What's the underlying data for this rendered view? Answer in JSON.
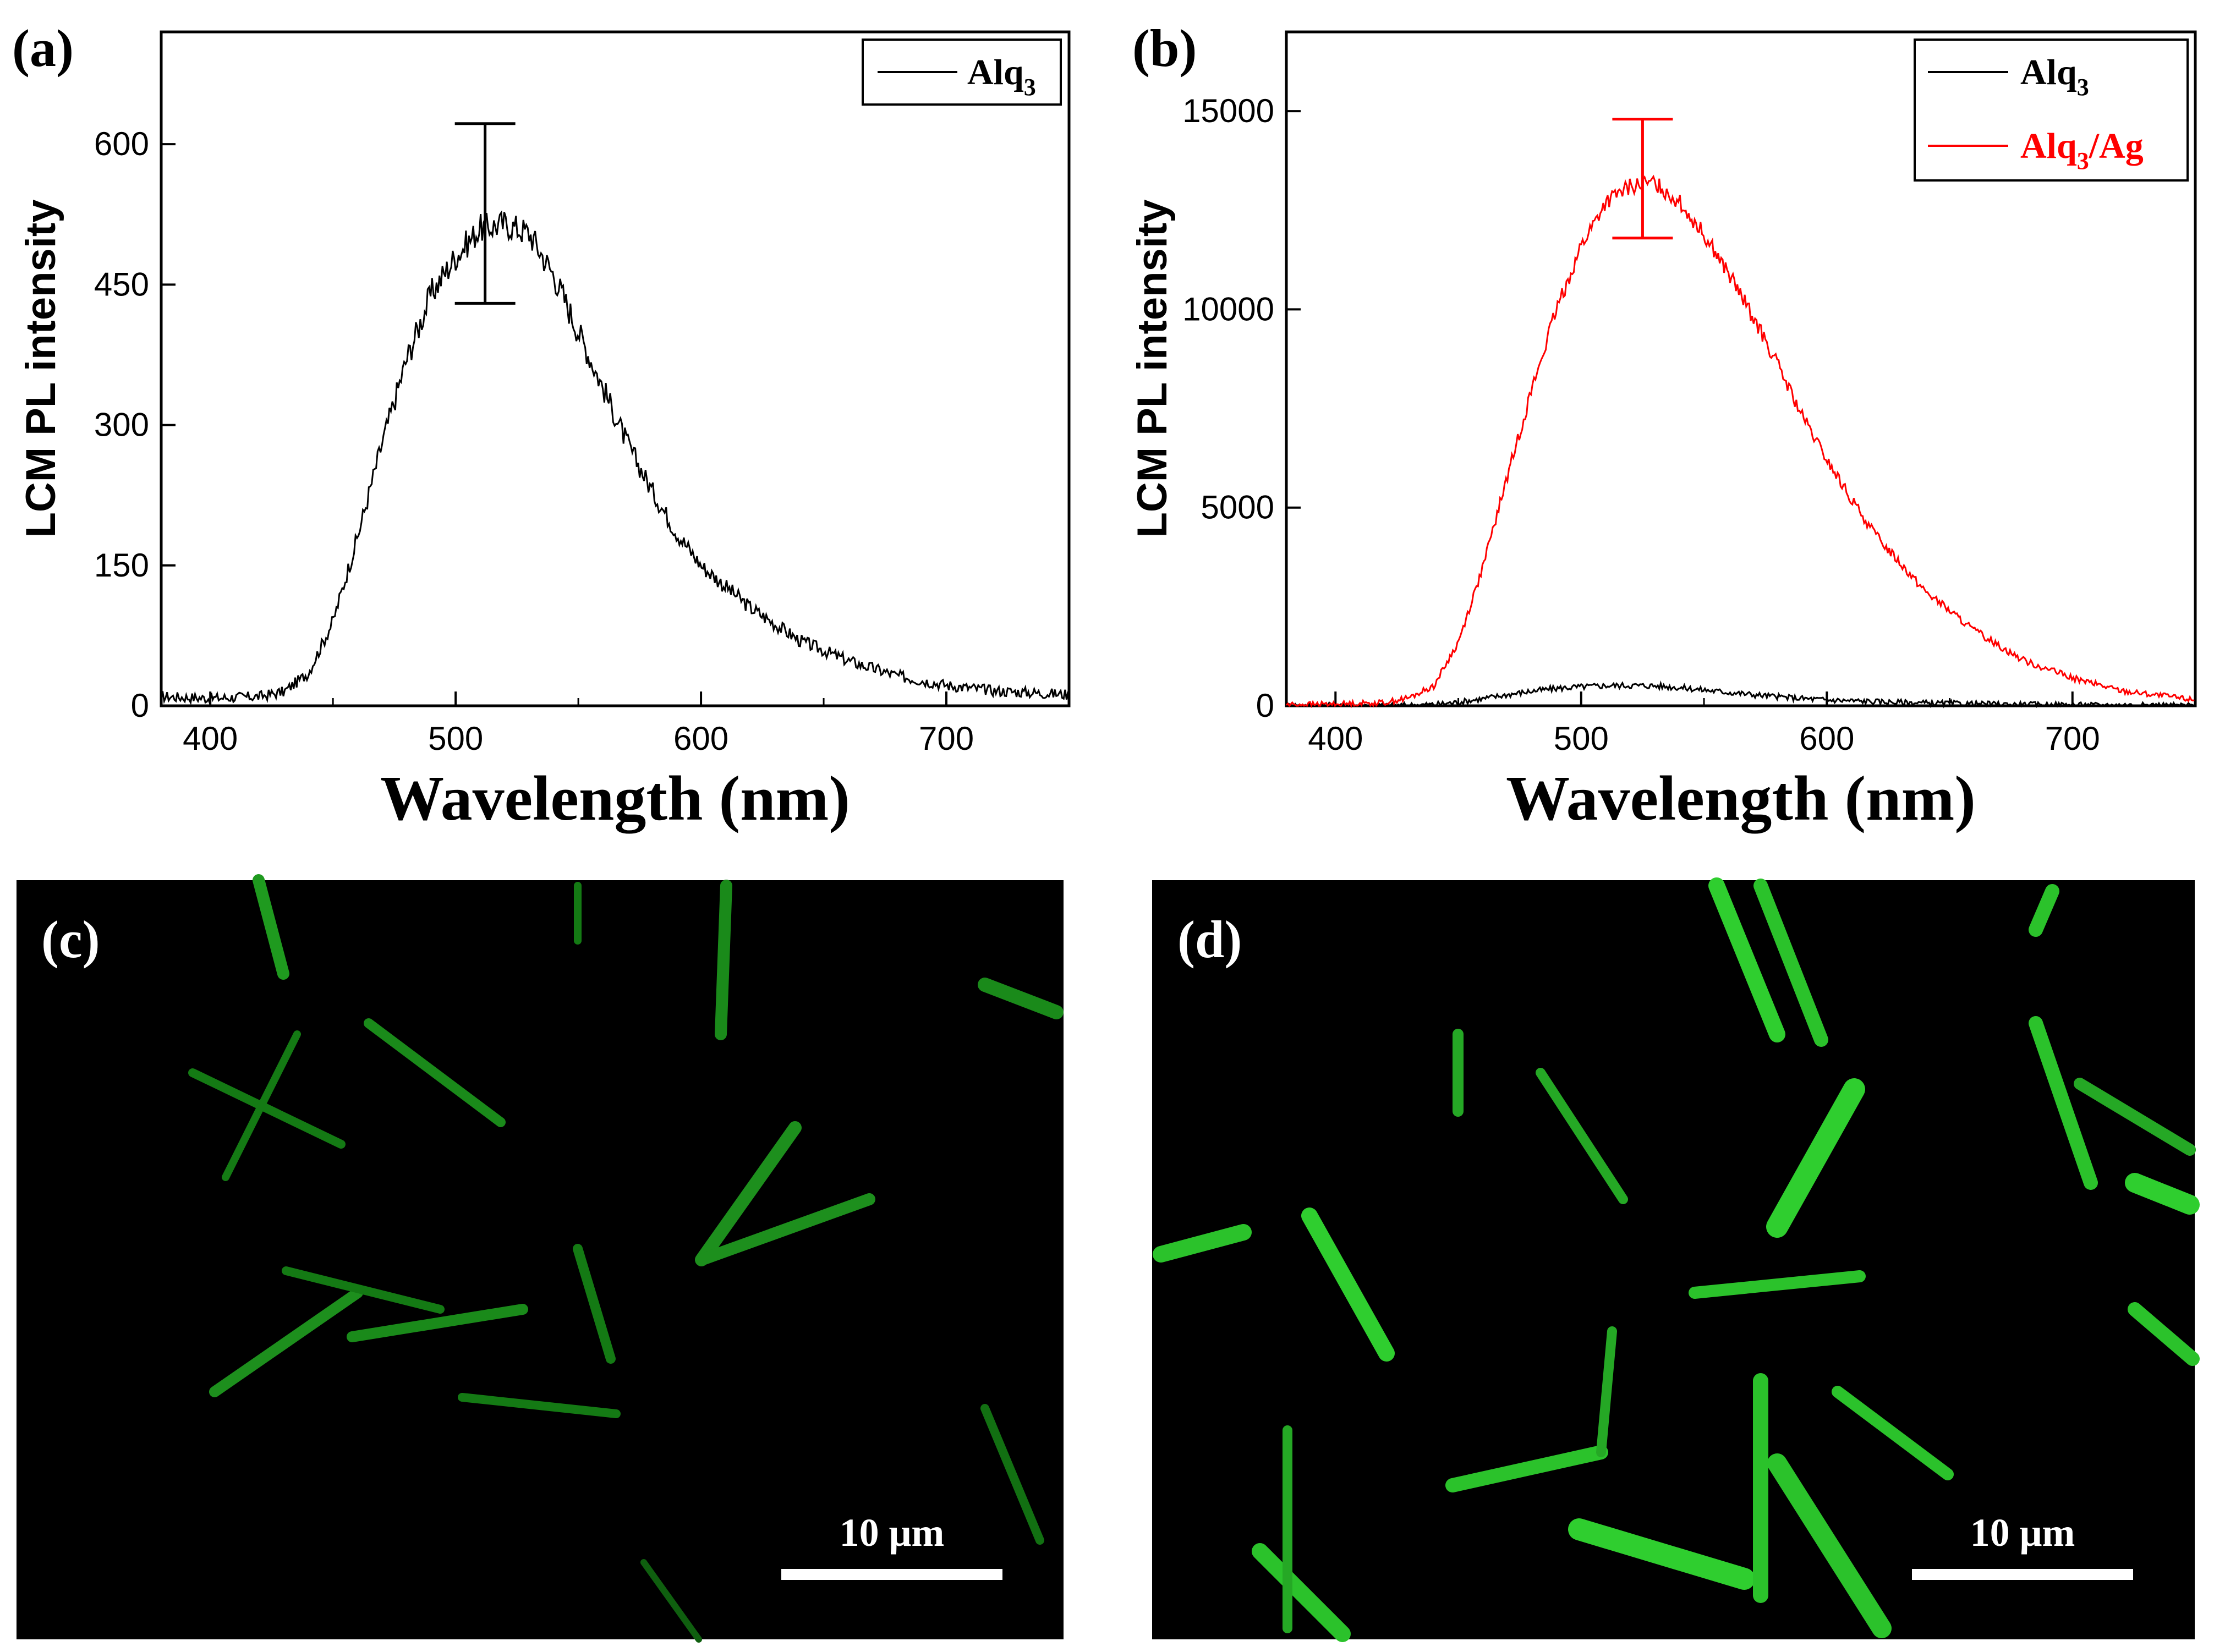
{
  "figure": {
    "panels": {
      "a": {
        "label": "(a)"
      },
      "b": {
        "label": "(b)"
      },
      "c": {
        "label": "(c)",
        "scale_bar": "10 μm"
      },
      "d": {
        "label": "(d)",
        "scale_bar": "10 μm"
      }
    }
  },
  "chart_data": [
    {
      "id": "a",
      "type": "line",
      "title": "",
      "xlabel": "Wavelength (nm)",
      "ylabel": "LCM PL intensity",
      "xlim": [
        380,
        750
      ],
      "ylim": [
        0,
        720
      ],
      "xticks": [
        400,
        500,
        600,
        700
      ],
      "yticks": [
        0,
        150,
        300,
        450,
        600
      ],
      "legend_position": "top-right",
      "series": [
        {
          "name": "Alq",
          "name_sub": "3",
          "color": "#000000",
          "x": [
            380,
            400,
            420,
            430,
            440,
            450,
            460,
            470,
            480,
            490,
            500,
            510,
            520,
            530,
            540,
            550,
            560,
            570,
            580,
            590,
            600,
            620,
            640,
            660,
            680,
            700,
            720,
            750
          ],
          "values": [
            10,
            8,
            10,
            15,
            35,
            90,
            180,
            280,
            370,
            440,
            480,
            510,
            515,
            505,
            460,
            400,
            340,
            280,
            230,
            185,
            150,
            105,
            70,
            48,
            32,
            22,
            16,
            12
          ]
        }
      ],
      "error_bar": {
        "x": 512,
        "low": 430,
        "high": 622
      }
    },
    {
      "id": "b",
      "type": "line",
      "title": "",
      "xlabel": "Wavelength (nm)",
      "ylabel": "LCM PL intensity",
      "xlim": [
        380,
        750
      ],
      "ylim": [
        0,
        17000
      ],
      "xticks": [
        400,
        500,
        600,
        700
      ],
      "yticks": [
        0,
        5000,
        10000,
        15000
      ],
      "legend_position": "top-right",
      "series": [
        {
          "name": "Alq",
          "name_sub": "3",
          "color": "#000000",
          "x": [
            380,
            400,
            420,
            430,
            440,
            450,
            460,
            470,
            480,
            490,
            500,
            510,
            520,
            530,
            540,
            550,
            560,
            570,
            580,
            590,
            600,
            620,
            640,
            660,
            680,
            700,
            720,
            750
          ],
          "values": [
            10,
            8,
            10,
            15,
            35,
            90,
            180,
            280,
            370,
            440,
            480,
            510,
            515,
            505,
            460,
            400,
            340,
            280,
            230,
            185,
            150,
            105,
            70,
            48,
            32,
            22,
            16,
            12
          ]
        },
        {
          "name": "Alq",
          "name_sub": "3",
          "name_suffix": "/Ag",
          "color": "#ff0000",
          "x": [
            380,
            400,
            420,
            430,
            440,
            450,
            460,
            470,
            480,
            490,
            500,
            510,
            520,
            530,
            540,
            550,
            560,
            570,
            580,
            590,
            600,
            610,
            620,
            640,
            660,
            680,
            700,
            720,
            750
          ],
          "values": [
            30,
            40,
            80,
            200,
            500,
            1600,
            3500,
            5800,
            8000,
            10000,
            11600,
            12700,
            13100,
            13200,
            12700,
            11900,
            10900,
            9800,
            8600,
            7300,
            6200,
            5200,
            4300,
            2900,
            1900,
            1150,
            700,
            380,
            150
          ]
        }
      ],
      "error_bar": {
        "x": 525,
        "low": 11800,
        "high": 14800
      }
    }
  ]
}
